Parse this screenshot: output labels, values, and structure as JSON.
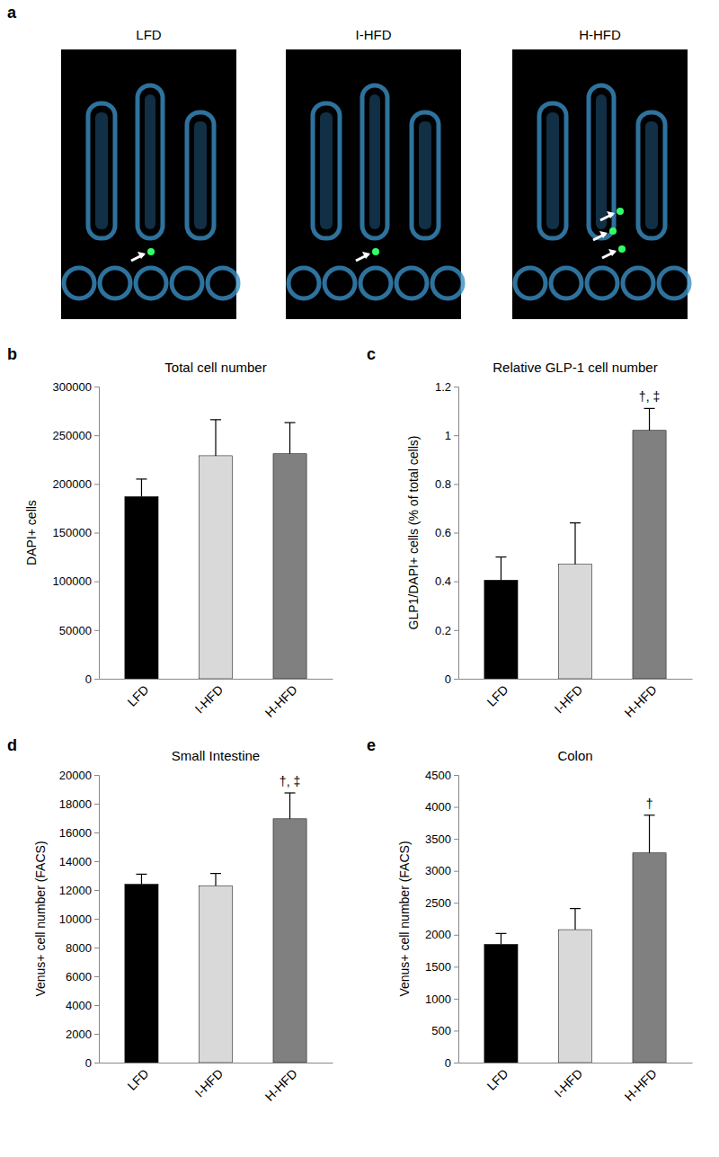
{
  "images": {
    "panel": "a",
    "titles": [
      "LFD",
      "I-HFD",
      "H-HFD"
    ]
  },
  "chart_data": [
    {
      "type": "bar",
      "panel": "b",
      "title": "Total cell number",
      "y_label": "DAPI+ cells",
      "categories": [
        "LFD",
        "I-HFD",
        "H-HFD"
      ],
      "values": [
        187000,
        229000,
        231000
      ],
      "errors": [
        18000,
        37000,
        32000
      ],
      "colors": [
        "#000000",
        "#d9d9d9",
        "#808080"
      ],
      "ylim": [
        0,
        300000
      ],
      "yticks": [
        0,
        50000,
        100000,
        150000,
        200000,
        250000,
        300000
      ]
    },
    {
      "type": "bar",
      "panel": "c",
      "title": "Relative GLP-1 cell number",
      "y_label": "GLP1/DAPI+ cells (% of total cells)",
      "categories": [
        "LFD",
        "I-HFD",
        "H-HFD"
      ],
      "values": [
        0.405,
        0.47,
        1.02
      ],
      "errors": [
        0.095,
        0.17,
        0.09
      ],
      "colors": [
        "#000000",
        "#d9d9d9",
        "#808080"
      ],
      "ylim": [
        0,
        1.2
      ],
      "yticks": [
        0,
        0.2,
        0.4,
        0.6,
        0.8,
        1,
        1.2
      ],
      "annotations": [
        {
          "category": "H-HFD",
          "text": "†, ‡"
        }
      ]
    },
    {
      "type": "bar",
      "panel": "d",
      "title": "Small Intestine",
      "y_label": "Venus+ cell number (FACS)",
      "categories": [
        "LFD",
        "I-HFD",
        "H-HFD"
      ],
      "values": [
        12400,
        12300,
        16950
      ],
      "errors": [
        700,
        850,
        1800
      ],
      "colors": [
        "#000000",
        "#d9d9d9",
        "#808080"
      ],
      "ylim": [
        0,
        20000
      ],
      "yticks": [
        0,
        2000,
        4000,
        6000,
        8000,
        10000,
        12000,
        14000,
        16000,
        18000,
        20000
      ],
      "annotations": [
        {
          "category": "H-HFD",
          "text": "†, ‡"
        }
      ]
    },
    {
      "type": "bar",
      "panel": "e",
      "title": "Colon",
      "y_label": "Venus+ cell number (FACS)",
      "categories": [
        "LFD",
        "I-HFD",
        "H-HFD"
      ],
      "values": [
        1850,
        2080,
        3280
      ],
      "errors": [
        170,
        330,
        590
      ],
      "colors": [
        "#000000",
        "#d9d9d9",
        "#808080"
      ],
      "ylim": [
        0,
        4500
      ],
      "yticks": [
        0,
        500,
        1000,
        1500,
        2000,
        2500,
        3000,
        3500,
        4000,
        4500
      ],
      "annotations": [
        {
          "category": "H-HFD",
          "text": "†"
        }
      ]
    }
  ]
}
